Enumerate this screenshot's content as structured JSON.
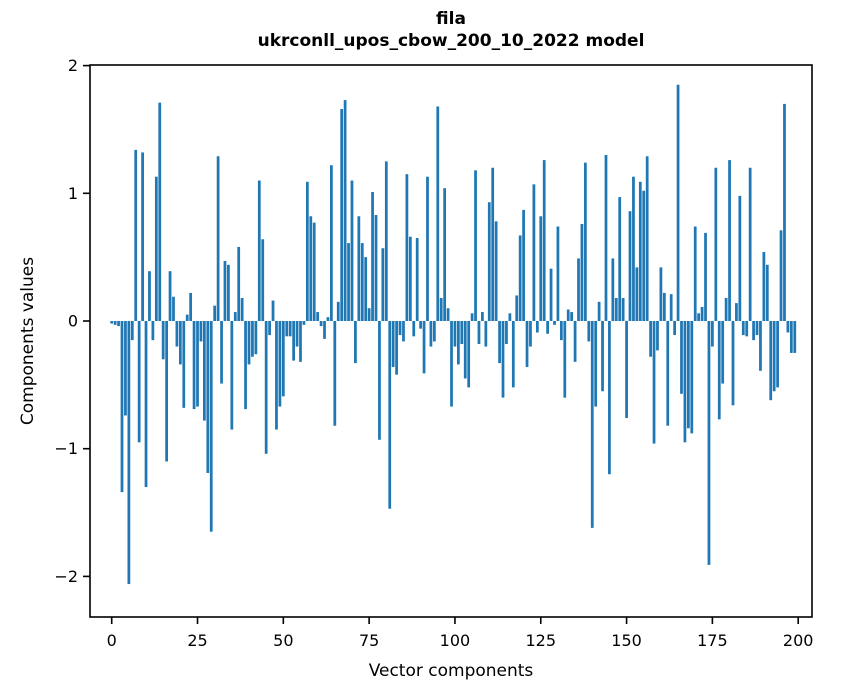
{
  "figure": {
    "title_line1": "fila",
    "title_line2": "ukrconll_upos_cbow_200_10_2022 model"
  },
  "chart_data": {
    "type": "bar",
    "title": "fila\nukrconll_upos_cbow_200_10_2022 model",
    "xlabel": "Vector components",
    "ylabel": "Components values",
    "bar_color": "#1f77b4",
    "grid": false,
    "legend": null,
    "xlim": [
      -6.3,
      204
    ],
    "ylim": [
      -2.32,
      2.01
    ],
    "x_ticks": [
      0,
      25,
      50,
      75,
      100,
      125,
      150,
      175,
      200
    ],
    "x_tick_labels": [
      "0",
      "25",
      "50",
      "75",
      "100",
      "125",
      "150",
      "175",
      "200"
    ],
    "y_ticks": [
      2,
      1,
      0,
      -1,
      -2
    ],
    "y_tick_labels": [
      "2",
      "1",
      "0",
      "−1",
      "−2"
    ],
    "x_start": 0,
    "values": [
      -0.02,
      -0.03,
      -0.04,
      -1.34,
      -0.74,
      -2.06,
      -0.15,
      1.34,
      -0.95,
      1.32,
      -1.3,
      0.39,
      -0.15,
      1.13,
      1.71,
      -0.3,
      -1.1,
      0.39,
      0.19,
      -0.2,
      -0.34,
      -0.68,
      0.05,
      0.22,
      -0.69,
      -0.67,
      -0.16,
      -0.78,
      -1.19,
      -1.65,
      0.12,
      1.29,
      -0.49,
      0.47,
      0.44,
      -0.85,
      0.07,
      0.58,
      0.18,
      -0.69,
      -0.34,
      -0.28,
      -0.26,
      1.1,
      0.64,
      -1.04,
      -0.11,
      0.16,
      -0.85,
      -0.67,
      -0.59,
      -0.12,
      -0.12,
      -0.31,
      -0.2,
      -0.32,
      -0.03,
      1.09,
      0.82,
      0.77,
      0.07,
      -0.04,
      -0.14,
      0.03,
      1.22,
      -0.82,
      0.15,
      1.66,
      1.73,
      0.61,
      1.1,
      -0.33,
      0.82,
      0.61,
      0.5,
      0.1,
      1.01,
      0.83,
      -0.93,
      0.57,
      1.25,
      -1.47,
      -0.36,
      -0.42,
      -0.11,
      -0.16,
      1.15,
      0.66,
      -0.12,
      0.65,
      -0.06,
      -0.41,
      1.13,
      -0.2,
      -0.16,
      1.68,
      0.18,
      1.04,
      0.1,
      -0.67,
      -0.2,
      -0.34,
      -0.18,
      -0.45,
      -0.52,
      0.06,
      1.18,
      -0.18,
      0.07,
      -0.2,
      0.93,
      1.2,
      0.78,
      -0.33,
      -0.6,
      -0.18,
      0.06,
      -0.52,
      0.2,
      0.67,
      0.87,
      -0.36,
      -0.2,
      1.07,
      -0.09,
      0.82,
      1.26,
      -0.1,
      0.41,
      -0.03,
      0.74,
      -0.15,
      -0.6,
      0.09,
      0.07,
      -0.32,
      0.49,
      0.76,
      1.24,
      -0.16,
      -1.62,
      -0.67,
      0.15,
      -0.55,
      1.3,
      -1.2,
      0.49,
      0.18,
      0.97,
      0.18,
      -0.76,
      0.86,
      1.13,
      0.42,
      1.09,
      1.02,
      1.29,
      -0.28,
      -0.96,
      -0.23,
      0.42,
      0.22,
      -0.82,
      0.21,
      -0.11,
      1.85,
      -0.57,
      -0.95,
      -0.84,
      -0.88,
      0.74,
      0.06,
      0.11,
      0.69,
      -1.91,
      -0.2,
      1.2,
      -0.77,
      -0.49,
      0.18,
      1.26,
      -0.66,
      0.14,
      0.98,
      -0.11,
      -0.12,
      1.2,
      -0.15,
      -0.11,
      -0.39,
      0.54,
      0.44,
      -0.62,
      -0.55,
      -0.52,
      0.71,
      1.7,
      -0.09,
      -0.25,
      -0.25
    ]
  }
}
